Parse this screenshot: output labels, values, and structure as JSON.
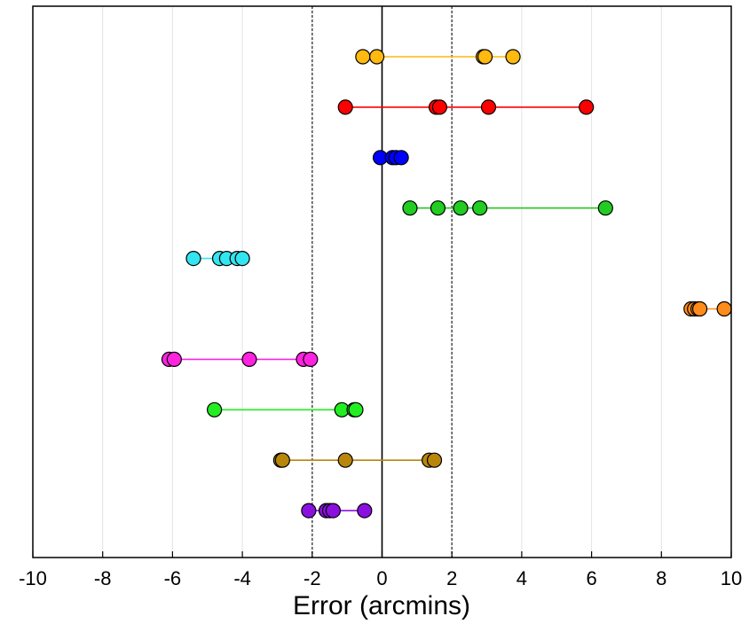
{
  "chart_data": {
    "type": "scatter",
    "xlabel": "Error (arcmins)",
    "ylabel": "",
    "title": "",
    "xlim": [
      -10,
      10
    ],
    "x_ticks": [
      "-10",
      "-8",
      "-6",
      "-4",
      "-2",
      "0",
      "2",
      "4",
      "6",
      "8",
      "10"
    ],
    "grid": "vertical",
    "reference_lines": [
      {
        "x": 0,
        "style": "solid",
        "color": "#000000"
      },
      {
        "x": -2,
        "style": "dashed",
        "color": "#555555"
      },
      {
        "x": 2,
        "style": "dashed",
        "color": "#555555"
      }
    ],
    "series": [
      {
        "color": "#FFB90F",
        "x": [
          -0.55,
          -0.15,
          2.9,
          2.95,
          3.75
        ]
      },
      {
        "color": "#FF0000",
        "x": [
          -1.05,
          1.55,
          1.65,
          3.05,
          5.85
        ]
      },
      {
        "color": "#0000FF",
        "x": [
          -0.05,
          0.3,
          0.4,
          0.55
        ]
      },
      {
        "color": "#22CC22",
        "x": [
          0.8,
          1.6,
          2.25,
          2.8,
          6.4
        ]
      },
      {
        "color": "#33E5F0",
        "x": [
          -5.4,
          -4.65,
          -4.45,
          -4.15,
          -4.0
        ]
      },
      {
        "color": "#FF8C1A",
        "x": [
          8.85,
          8.95,
          9.05,
          9.1,
          9.8
        ]
      },
      {
        "color": "#FF22E0",
        "x": [
          -6.1,
          -5.95,
          -3.8,
          -2.25,
          -2.05
        ]
      },
      {
        "color": "#22EE22",
        "x": [
          -4.8,
          -1.15,
          -0.8,
          -0.75
        ]
      },
      {
        "color": "#B8860B",
        "x": [
          -2.9,
          -2.85,
          -1.05,
          1.35,
          1.5
        ]
      },
      {
        "color": "#8B10E0",
        "x": [
          -2.1,
          -1.6,
          -1.5,
          -1.4,
          -0.5
        ]
      }
    ]
  }
}
